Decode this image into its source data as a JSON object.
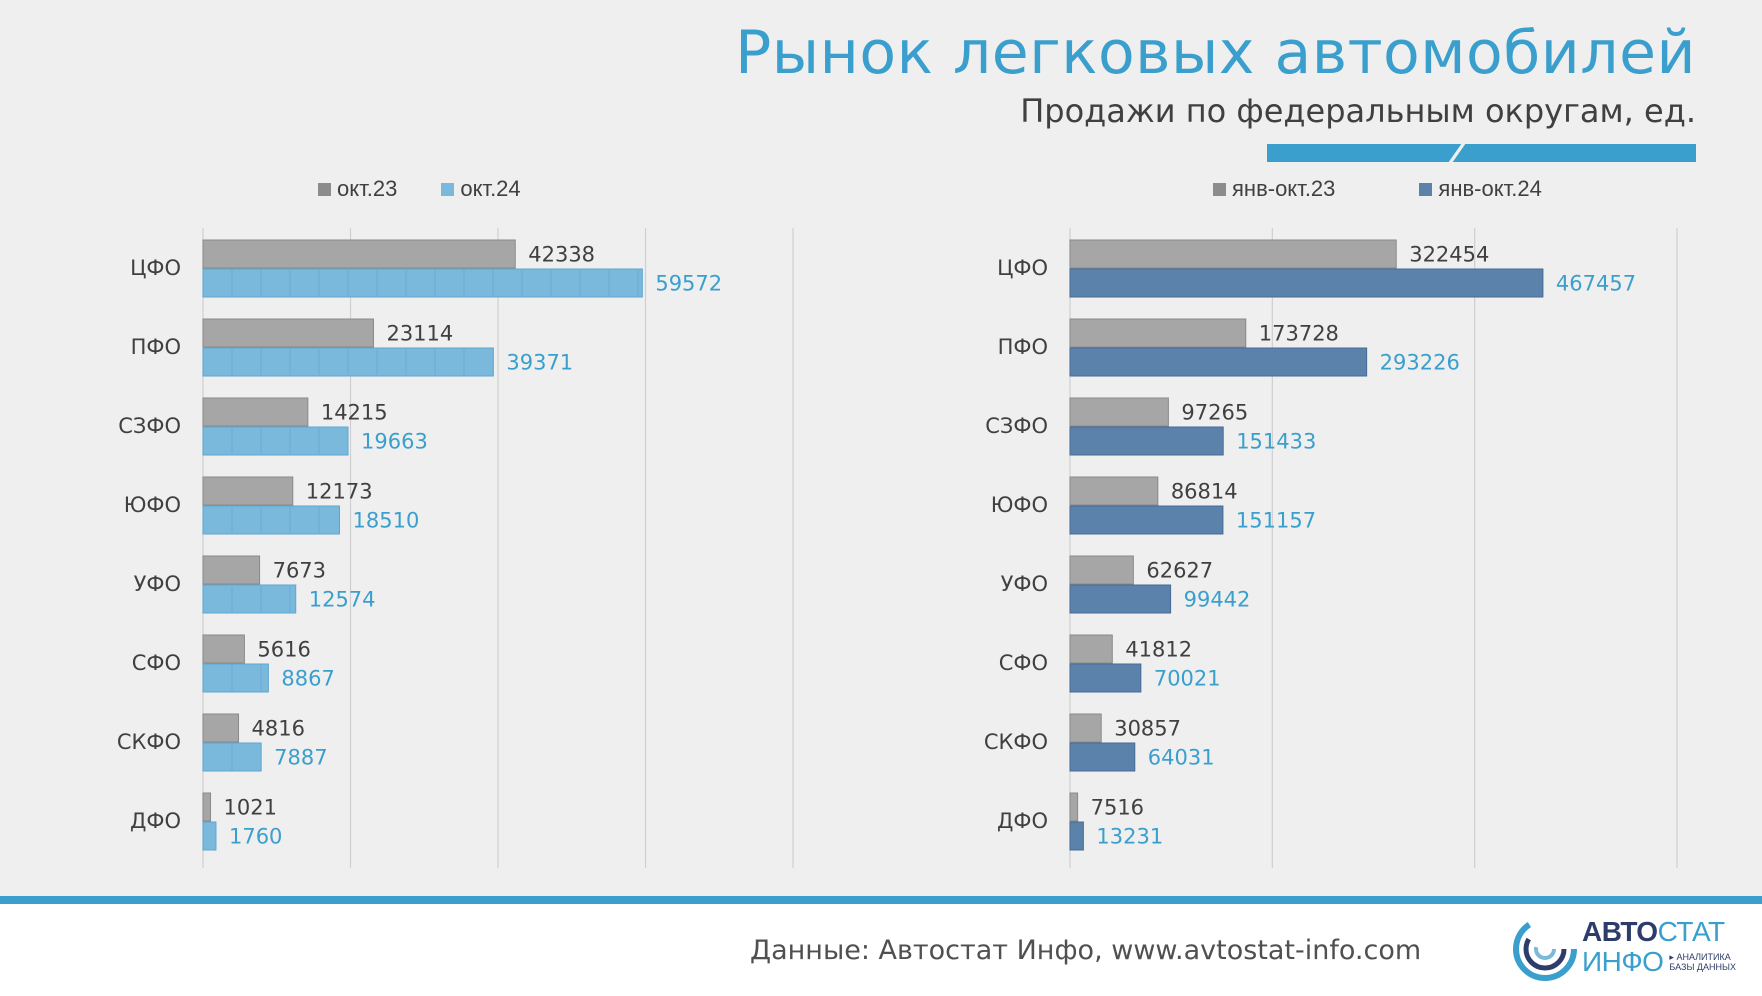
{
  "title": "Рынок легковых автомобилей",
  "subtitle": "Продажи по федеральным округам, ед.",
  "source": "Данные: Автостат Инфо, www.avtostat-info.com",
  "logo": {
    "brand_part1": "АВТО",
    "brand_part2": "СТАТ",
    "brand_line2": "ИНФО",
    "tagline_line1": "▸ АНАЛИТИКА",
    "tagline_line2": "БАЗЫ ДАННЫХ"
  },
  "colors": {
    "accent": "#3a9fcd",
    "grey_bar": "#a6a6a6",
    "light_blue_bar": "#7ab8dc",
    "dark_blue_bar": "#5b82ab",
    "label_blue": "#3a9fcd",
    "label_dark": "#404040"
  },
  "chart_data": [
    {
      "type": "bar",
      "orientation": "horizontal",
      "categories": [
        "ЦФО",
        "ПФО",
        "СЗФО",
        "ЮФО",
        "УФО",
        "СФО",
        "СКФО",
        "ДФО"
      ],
      "series": [
        {
          "name": "окт.23",
          "values": [
            42338,
            23114,
            14215,
            12173,
            7673,
            5616,
            4816,
            1021
          ]
        },
        {
          "name": "окт.24",
          "values": [
            59572,
            39371,
            19663,
            18510,
            12574,
            8867,
            7887,
            1760
          ]
        }
      ],
      "xlim": [
        0,
        80000
      ],
      "grid": true,
      "legend": "top"
    },
    {
      "type": "bar",
      "orientation": "horizontal",
      "categories": [
        "ЦФО",
        "ПФО",
        "СЗФО",
        "ЮФО",
        "УФО",
        "СФО",
        "СКФО",
        "ДФО"
      ],
      "series": [
        {
          "name": "янв-окт.23",
          "values": [
            322454,
            173728,
            97265,
            86814,
            62627,
            41812,
            30857,
            7516
          ]
        },
        {
          "name": "янв-окт.24",
          "values": [
            467457,
            293226,
            151433,
            151157,
            99442,
            70021,
            64031,
            13231
          ]
        }
      ],
      "xlim": [
        0,
        600000
      ],
      "grid": true,
      "legend": "top"
    }
  ]
}
